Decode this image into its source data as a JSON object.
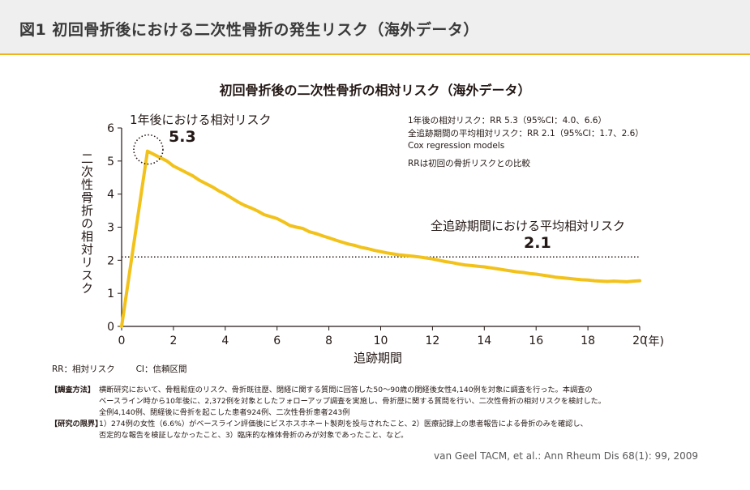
{
  "header": {
    "title": "図1 初回骨折後における二次性骨折の発生リスク（海外データ）"
  },
  "chart_data": {
    "type": "line",
    "title": "初回骨折後の二次性骨折の相対リスク（海外データ）",
    "xlabel": "追跡期間",
    "x_unit": "(年)",
    "ylabel": "二次性骨折の相対リスク",
    "xlim": [
      0,
      20
    ],
    "ylim": [
      0,
      6
    ],
    "x_ticks": [
      0,
      2,
      4,
      6,
      8,
      10,
      12,
      14,
      16,
      18,
      20
    ],
    "y_ticks": [
      0,
      1,
      2,
      3,
      4,
      5,
      6
    ],
    "grid": false,
    "series": [
      {
        "color": "#f2c21b",
        "x": [
          0,
          1,
          1.25,
          1.5,
          1.75,
          2,
          2.25,
          2.5,
          2.75,
          3,
          3.25,
          3.5,
          3.75,
          4,
          4.25,
          4.5,
          4.75,
          5,
          5.25,
          5.5,
          5.75,
          6,
          6.25,
          6.5,
          6.75,
          7,
          7.25,
          7.5,
          7.75,
          8,
          8.25,
          8.5,
          8.75,
          9,
          9.25,
          9.5,
          9.75,
          10,
          10.25,
          10.5,
          10.75,
          11,
          11.25,
          11.5,
          11.75,
          12,
          12.25,
          12.5,
          12.75,
          13,
          13.25,
          13.5,
          13.75,
          14,
          14.25,
          14.5,
          14.75,
          15,
          15.25,
          15.5,
          15.75,
          16,
          16.25,
          16.5,
          16.75,
          17,
          17.25,
          17.5,
          17.75,
          18,
          18.25,
          18.5,
          18.75,
          19,
          19.25,
          19.5,
          19.75,
          20
        ],
        "values": [
          0,
          5.3,
          5.2,
          5.1,
          5.0,
          4.85,
          4.75,
          4.65,
          4.55,
          4.42,
          4.32,
          4.22,
          4.1,
          4.0,
          3.88,
          3.76,
          3.66,
          3.58,
          3.49,
          3.38,
          3.32,
          3.26,
          3.16,
          3.05,
          3.0,
          2.96,
          2.86,
          2.81,
          2.74,
          2.68,
          2.61,
          2.55,
          2.49,
          2.45,
          2.39,
          2.35,
          2.3,
          2.26,
          2.22,
          2.19,
          2.16,
          2.14,
          2.12,
          2.1,
          2.07,
          2.04,
          2.0,
          1.96,
          1.93,
          1.89,
          1.86,
          1.84,
          1.82,
          1.8,
          1.77,
          1.74,
          1.71,
          1.68,
          1.65,
          1.63,
          1.6,
          1.58,
          1.55,
          1.52,
          1.49,
          1.47,
          1.45,
          1.43,
          1.41,
          1.4,
          1.38,
          1.37,
          1.36,
          1.37,
          1.36,
          1.35,
          1.37,
          1.38
        ]
      }
    ],
    "reference_line": {
      "y": 2.1,
      "style": "dotted"
    },
    "highlight": {
      "x": 1,
      "y": 5.3,
      "style": "dotted-circle"
    },
    "annotations": [
      {
        "text": "1年後における相対リスク",
        "value": "5.3"
      },
      {
        "text": "全追跡期間における平均相対リスク",
        "value": "2.1"
      }
    ],
    "notes": [
      "1年後の相対リスク：RR 5.3（95%CI：4.0、6.6）",
      "全追跡期間の平均相対リスク：RR 2.1（95%CI：1.7、2.6）",
      "Cox regression models",
      "RRは初回の骨折リスクとの比較"
    ]
  },
  "abbreviations": [
    "RR：相対リスク",
    "CI：信頼区間"
  ],
  "method": {
    "label": "【調査方法】",
    "lines": [
      "横断研究において、骨粗鬆症のリスク、骨折既往歴、閉経に関する質問に回答した50～90歳の閉経後女性4,140例を対象に調査を行った。本調査の",
      "ベースライン時から10年後に、2,372例を対象としたフォローアップ調査を実施し、骨折歴に関する質問を行い、二次性骨折の相対リスクを検討した。",
      "全例4,140例、閉経後に骨折を起こした患者924例、二次性骨折患者243例"
    ]
  },
  "limitations": {
    "label": "【研究の限界】",
    "lines": [
      "1）274例の女性（6.6%）がベースライン評価後にビスホスホネート製剤を投与されたこと、2）医療記録上の患者報告による骨折のみを確認し、",
      "否定的な報告を検証しなかったこと、3）臨床的な椎体骨折のみが対象であったこと、など。"
    ]
  },
  "citation": "van Geel TACM, et al.: Ann Rheum Dis 68(1): 99, 2009"
}
